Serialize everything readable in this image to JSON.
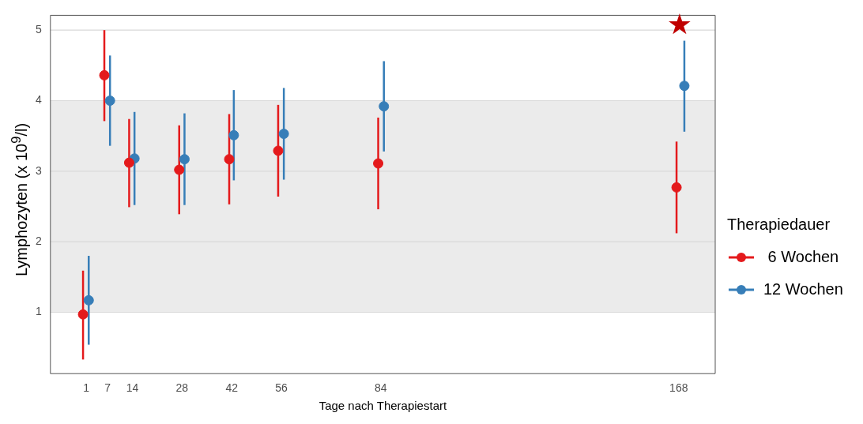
{
  "chart_data": {
    "type": "scatter",
    "xlabel": "Tage nach Therapiestart",
    "ylabel": "Lymphozyten (x 10$^{9}$/l)",
    "legend_title": "Therapiedauer",
    "legend": "right",
    "grid": "y",
    "marker": "circle",
    "xlim": [
      -9.1,
      178.3
    ],
    "xticks": [
      1,
      7,
      14,
      28,
      42,
      56,
      84,
      168
    ],
    "ylim": [
      0.13,
      5.21
    ],
    "yticks": [
      1,
      2,
      3,
      4,
      5
    ],
    "bands": [
      {
        "axis": "y",
        "from": 1,
        "to": 4,
        "color": "#ebebeb"
      }
    ],
    "annotations": [
      "★"
    ],
    "series": [
      {
        "name": " 6 Wochen",
        "color": "#e41a1c",
        "x": [
          0.1,
          6.1,
          13.1,
          27.2,
          41.3,
          55.1,
          83.3,
          167.4
        ],
        "values": [
          0.97,
          4.36,
          3.12,
          3.02,
          3.17,
          3.29,
          3.11,
          2.77
        ],
        "errors": [
          [
            0.33,
            1.59
          ],
          [
            3.71,
            5.0
          ],
          [
            2.49,
            3.74
          ],
          [
            2.39,
            3.65
          ],
          [
            2.53,
            3.81
          ],
          [
            2.64,
            3.94
          ],
          [
            2.46,
            3.76
          ],
          [
            2.12,
            3.42
          ]
        ]
      },
      {
        "name": "12 Wochen",
        "color": "#377eb8",
        "x": [
          1.7,
          7.7,
          14.6,
          28.7,
          42.6,
          56.7,
          84.9,
          169.6
        ],
        "values": [
          1.17,
          4.0,
          3.18,
          3.17,
          3.51,
          3.53,
          3.92,
          4.21
        ],
        "errors": [
          [
            0.54,
            1.8
          ],
          [
            3.36,
            4.64
          ],
          [
            2.52,
            3.84
          ],
          [
            2.52,
            3.82
          ],
          [
            2.87,
            4.15
          ],
          [
            2.88,
            4.18
          ],
          [
            3.28,
            4.56
          ],
          [
            3.56,
            4.85
          ]
        ]
      }
    ]
  }
}
